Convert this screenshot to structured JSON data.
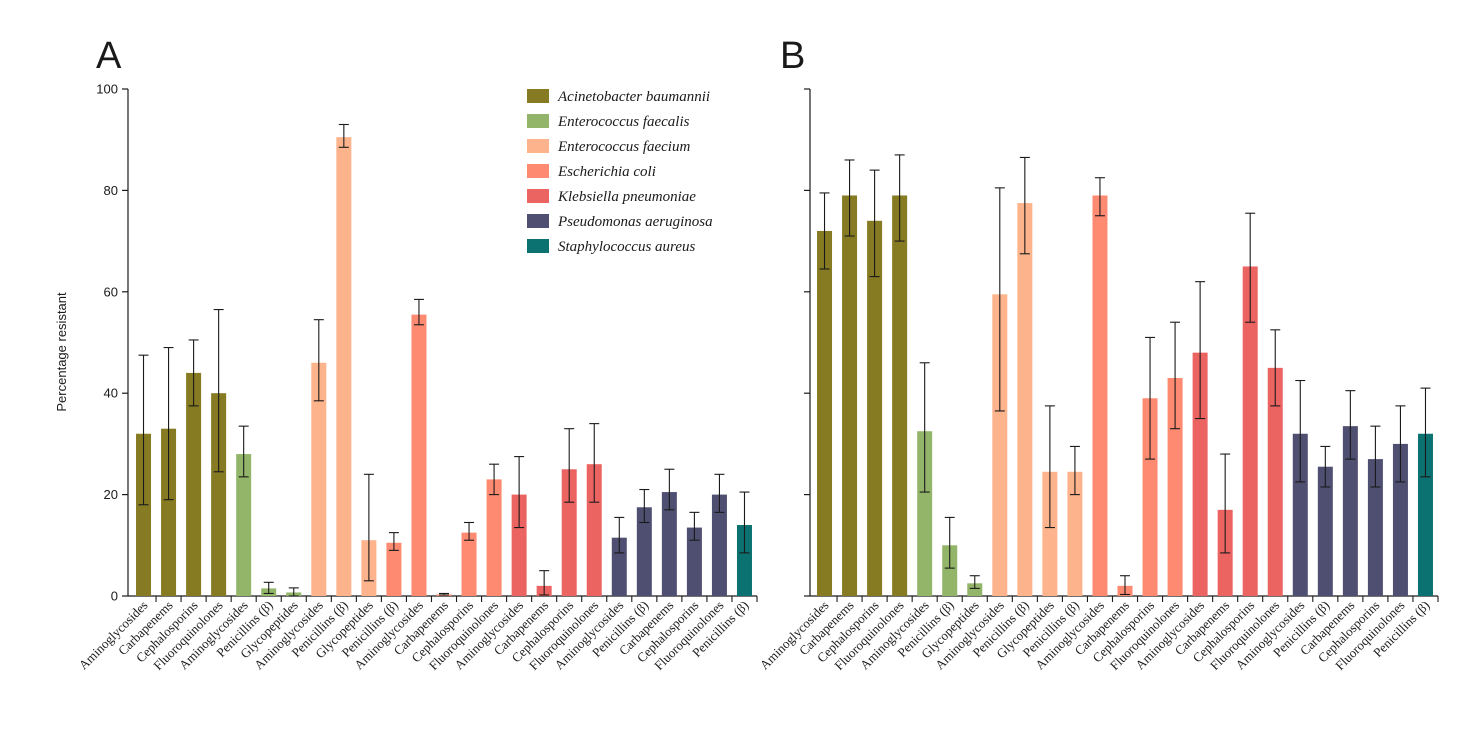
{
  "colors": {
    "Acinetobacter baumannii": "#867a22",
    "Enterococcus faecalis": "#93b56a",
    "Enterococcus faecium": "#fdb38b",
    "Escherichia coli": "#fd8a71",
    "Klebsiella pneumoniae": "#eb6461",
    "Pseudomonas aeruginosa": "#4f4f71",
    "Staphylococcus aureus": "#0c7171"
  },
  "legend": [
    "Acinetobacter baumannii",
    "Enterococcus faecalis",
    "Enterococcus faecium",
    "Escherichia coli",
    "Klebsiella pneumoniae",
    "Pseudomonas aeruginosa",
    "Staphylococcus aureus"
  ],
  "chart_data": [
    {
      "type": "bar",
      "panel": "A",
      "ylabel": "Percentage resistant",
      "ylim": [
        0,
        100
      ],
      "yticks": [
        0,
        20,
        40,
        60,
        80,
        100
      ],
      "bars": [
        {
          "category": "Aminoglycosides",
          "series": "Acinetobacter baumannii",
          "value": 32,
          "err": [
            18,
            47.5
          ]
        },
        {
          "category": "Carbapenems",
          "series": "Acinetobacter baumannii",
          "value": 33,
          "err": [
            19,
            49
          ]
        },
        {
          "category": "Cephalosporins",
          "series": "Acinetobacter baumannii",
          "value": 44,
          "err": [
            37.5,
            50.5
          ]
        },
        {
          "category": "Fluoroquinolones",
          "series": "Acinetobacter baumannii",
          "value": 40,
          "err": [
            24.5,
            56.5
          ]
        },
        {
          "category": "Aminoglycosides",
          "series": "Enterococcus faecalis",
          "value": 28,
          "err": [
            23.5,
            33.5
          ]
        },
        {
          "category": "Penicillins (β)",
          "series": "Enterococcus faecalis",
          "value": 1.5,
          "err": [
            0.5,
            2.7
          ]
        },
        {
          "category": "Glycopeptides",
          "series": "Enterococcus faecalis",
          "value": 0.7,
          "err": [
            0,
            1.6
          ]
        },
        {
          "category": "Aminoglycosides",
          "series": "Enterococcus faecium",
          "value": 46,
          "err": [
            38.5,
            54.5
          ]
        },
        {
          "category": "Penicillins (β)",
          "series": "Enterococcus faecium",
          "value": 90.5,
          "err": [
            88.5,
            93
          ]
        },
        {
          "category": "Glycopeptides",
          "series": "Enterococcus faecium",
          "value": 11,
          "err": [
            3,
            24
          ]
        },
        {
          "category": "Penicillins (β)",
          "series": "Escherichia coli",
          "value": 10.5,
          "err": [
            9,
            12.5
          ]
        },
        {
          "category": "Aminoglycosides",
          "series": "Escherichia coli",
          "value": 55.5,
          "err": [
            53.5,
            58.5
          ]
        },
        {
          "category": "Carbapenems",
          "series": "Escherichia coli",
          "value": 0.3,
          "err": [
            0.2,
            0.5
          ]
        },
        {
          "category": "Cephalosporins",
          "series": "Escherichia coli",
          "value": 12.5,
          "err": [
            11,
            14.5
          ]
        },
        {
          "category": "Fluoroquinolones",
          "series": "Escherichia coli",
          "value": 23,
          "err": [
            20,
            26
          ]
        },
        {
          "category": "Aminoglycosides",
          "series": "Klebsiella pneumoniae",
          "value": 20,
          "err": [
            13.5,
            27.5
          ]
        },
        {
          "category": "Carbapenems",
          "series": "Klebsiella pneumoniae",
          "value": 2,
          "err": [
            0.2,
            5
          ]
        },
        {
          "category": "Cephalosporins",
          "series": "Klebsiella pneumoniae",
          "value": 25,
          "err": [
            18.5,
            33
          ]
        },
        {
          "category": "Fluoroquinolones",
          "series": "Klebsiella pneumoniae",
          "value": 26,
          "err": [
            18.5,
            34
          ]
        },
        {
          "category": "Aminoglycosides",
          "series": "Pseudomonas aeruginosa",
          "value": 11.5,
          "err": [
            8.5,
            15.5
          ]
        },
        {
          "category": "Penicillins (β)",
          "series": "Pseudomonas aeruginosa",
          "value": 17.5,
          "err": [
            14.5,
            21
          ]
        },
        {
          "category": "Carbapenems",
          "series": "Pseudomonas aeruginosa",
          "value": 20.5,
          "err": [
            17,
            25
          ]
        },
        {
          "category": "Cephalosporins",
          "series": "Pseudomonas aeruginosa",
          "value": 13.5,
          "err": [
            11,
            16.5
          ]
        },
        {
          "category": "Fluoroquinolones",
          "series": "Pseudomonas aeruginosa",
          "value": 20,
          "err": [
            16.5,
            24
          ]
        },
        {
          "category": "Penicillins (β)",
          "series": "Staphylococcus aureus",
          "value": 14,
          "err": [
            8.5,
            20.5
          ]
        }
      ]
    },
    {
      "type": "bar",
      "panel": "B",
      "ylim": [
        0,
        100
      ],
      "yticks": [
        0,
        20,
        40,
        60,
        80,
        100
      ],
      "bars": [
        {
          "category": "Aminoglycosides",
          "series": "Acinetobacter baumannii",
          "value": 72,
          "err": [
            64.5,
            79.5
          ]
        },
        {
          "category": "Carbapenems",
          "series": "Acinetobacter baumannii",
          "value": 79,
          "err": [
            71,
            86
          ]
        },
        {
          "category": "Cephalosporins",
          "series": "Acinetobacter baumannii",
          "value": 74,
          "err": [
            63,
            84
          ]
        },
        {
          "category": "Fluoroquinolones",
          "series": "Acinetobacter baumannii",
          "value": 79,
          "err": [
            70,
            87
          ]
        },
        {
          "category": "Aminoglycosides",
          "series": "Enterococcus faecalis",
          "value": 32.5,
          "err": [
            20.5,
            46
          ]
        },
        {
          "category": "Penicillins (β)",
          "series": "Enterococcus faecalis",
          "value": 10,
          "err": [
            5.5,
            15.5
          ]
        },
        {
          "category": "Glycopeptides",
          "series": "Enterococcus faecalis",
          "value": 2.5,
          "err": [
            1.5,
            4
          ]
        },
        {
          "category": "Aminoglycosides",
          "series": "Enterococcus faecium",
          "value": 59.5,
          "err": [
            36.5,
            80.5
          ]
        },
        {
          "category": "Penicillins (β)",
          "series": "Enterococcus faecium",
          "value": 77.5,
          "err": [
            67.5,
            86.5
          ]
        },
        {
          "category": "Glycopeptides",
          "series": "Enterococcus faecium",
          "value": 24.5,
          "err": [
            13.5,
            37.5
          ]
        },
        {
          "category": "Penicillins (β)",
          "series": "Enterococcus faecium",
          "value": 24.5,
          "err": [
            20,
            29.5
          ]
        },
        {
          "category": "Aminoglycosides",
          "series": "Escherichia coli",
          "value": 79,
          "err": [
            75,
            82.5
          ]
        },
        {
          "category": "Carbapenems",
          "series": "Escherichia coli",
          "value": 2,
          "err": [
            0.3,
            4
          ]
        },
        {
          "category": "Cephalosporins",
          "series": "Escherichia coli",
          "value": 39,
          "err": [
            27,
            51
          ]
        },
        {
          "category": "Fluoroquinolones",
          "series": "Escherichia coli",
          "value": 43,
          "err": [
            33,
            54
          ]
        },
        {
          "category": "Aminoglycosides",
          "series": "Klebsiella pneumoniae",
          "value": 48,
          "err": [
            35,
            62
          ]
        },
        {
          "category": "Carbapenems",
          "series": "Klebsiella pneumoniae",
          "value": 17,
          "err": [
            8.5,
            28
          ]
        },
        {
          "category": "Cephalosporins",
          "series": "Klebsiella pneumoniae",
          "value": 65,
          "err": [
            54,
            75.5
          ]
        },
        {
          "category": "Fluoroquinolones",
          "series": "Klebsiella pneumoniae",
          "value": 45,
          "err": [
            37.5,
            52.5
          ]
        },
        {
          "category": "Aminoglycosides",
          "series": "Pseudomonas aeruginosa",
          "value": 32,
          "err": [
            22.5,
            42.5
          ]
        },
        {
          "category": "Penicillins (β)",
          "series": "Pseudomonas aeruginosa",
          "value": 25.5,
          "err": [
            21.5,
            29.5
          ]
        },
        {
          "category": "Carbapenems",
          "series": "Pseudomonas aeruginosa",
          "value": 33.5,
          "err": [
            27,
            40.5
          ]
        },
        {
          "category": "Cephalosporins",
          "series": "Pseudomonas aeruginosa",
          "value": 27,
          "err": [
            21.5,
            33.5
          ]
        },
        {
          "category": "Fluoroquinolones",
          "series": "Pseudomonas aeruginosa",
          "value": 30,
          "err": [
            22.5,
            37.5
          ]
        },
        {
          "category": "Penicillins (β)",
          "series": "Staphylococcus aureus",
          "value": 32,
          "err": [
            23.5,
            41
          ]
        }
      ]
    }
  ]
}
